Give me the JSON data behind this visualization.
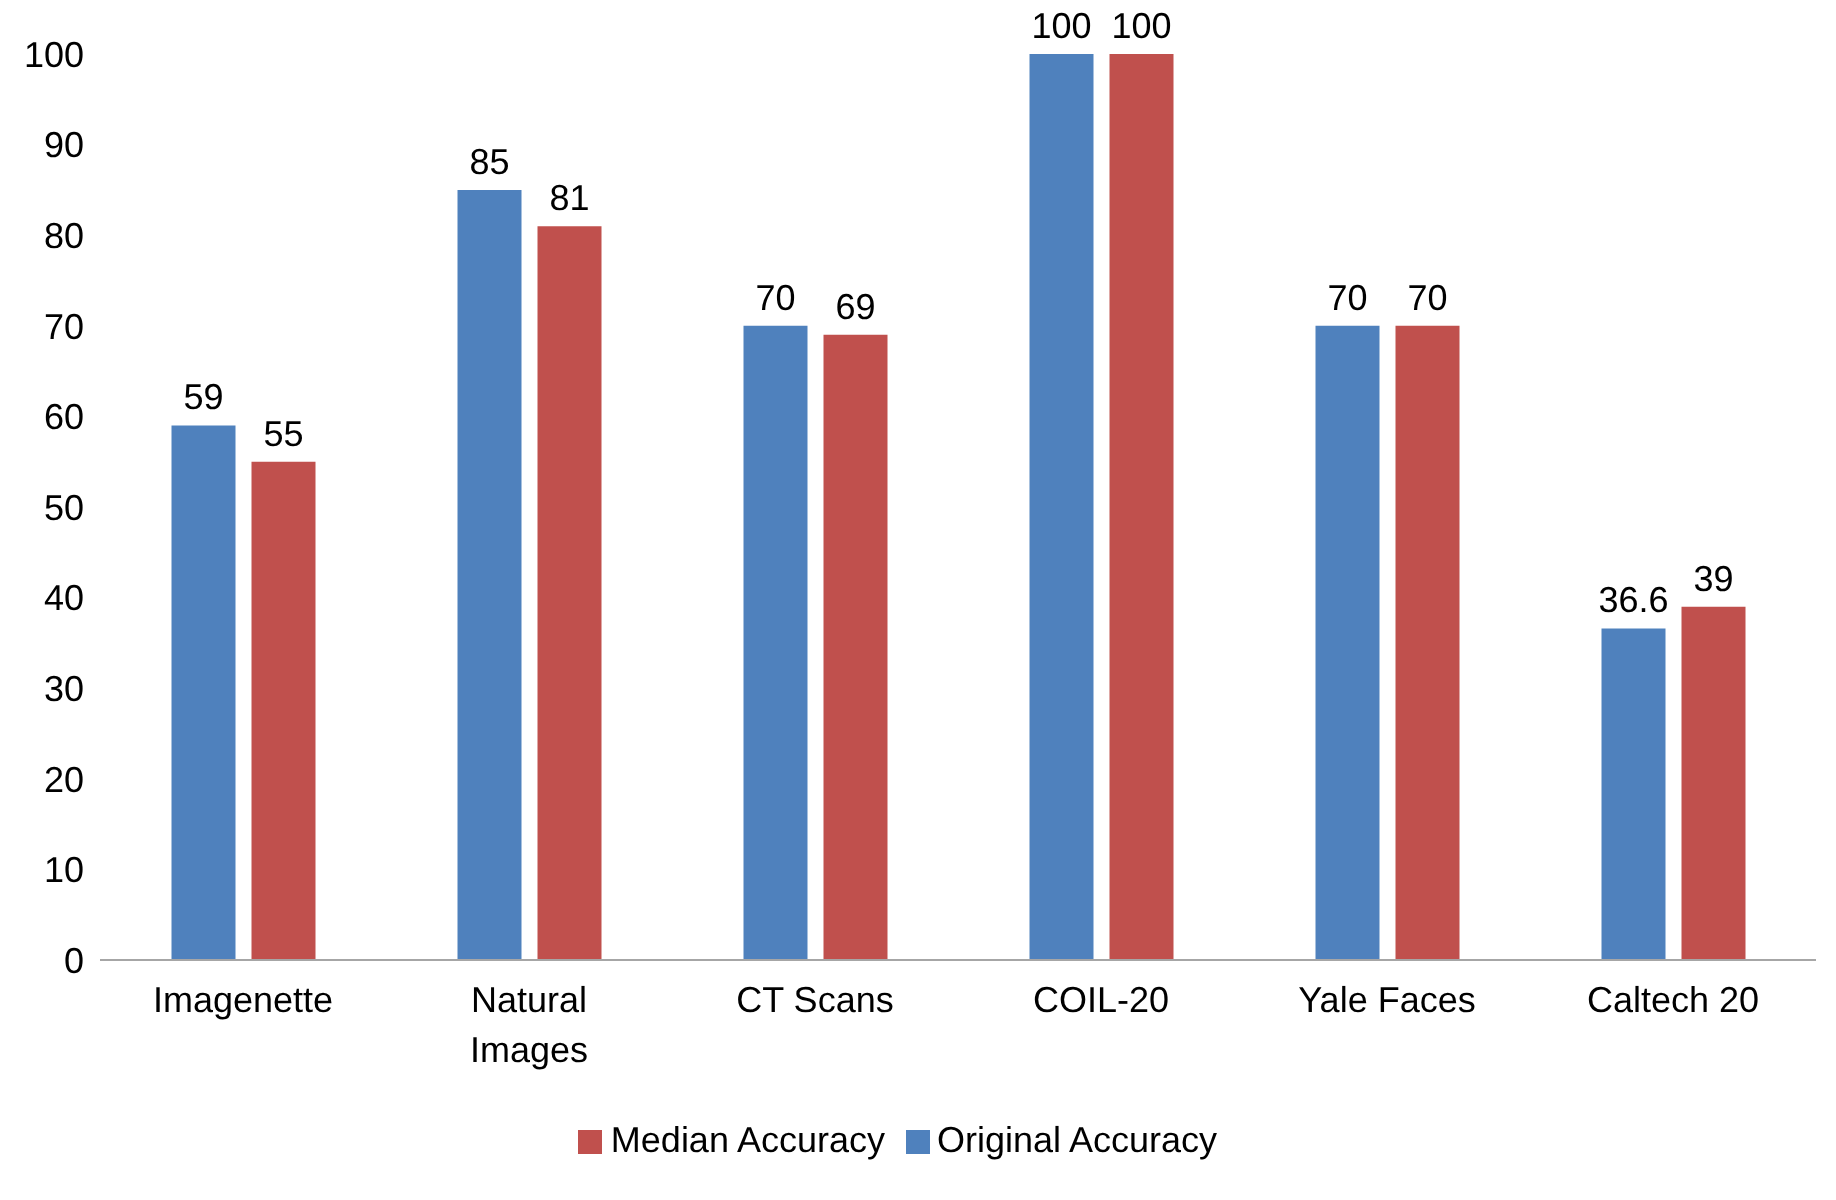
{
  "chart_data": {
    "type": "bar",
    "categories": [
      "Imagenette",
      "Natural Images",
      "CT Scans",
      "COIL-20",
      "Yale Faces",
      "Caltech 20"
    ],
    "series": [
      {
        "name": "Original Accuracy",
        "color": "#4f81bd",
        "values": [
          59,
          85,
          70,
          100,
          70,
          36.6
        ]
      },
      {
        "name": "Median Accuracy",
        "color": "#c0504d",
        "values": [
          55,
          81,
          69,
          100,
          70,
          39
        ]
      }
    ],
    "ylim": [
      0,
      100
    ],
    "yticks": [
      0,
      10,
      20,
      30,
      40,
      50,
      60,
      70,
      80,
      90,
      100
    ],
    "grid": false,
    "legend": "bottom",
    "data_labels": true
  }
}
